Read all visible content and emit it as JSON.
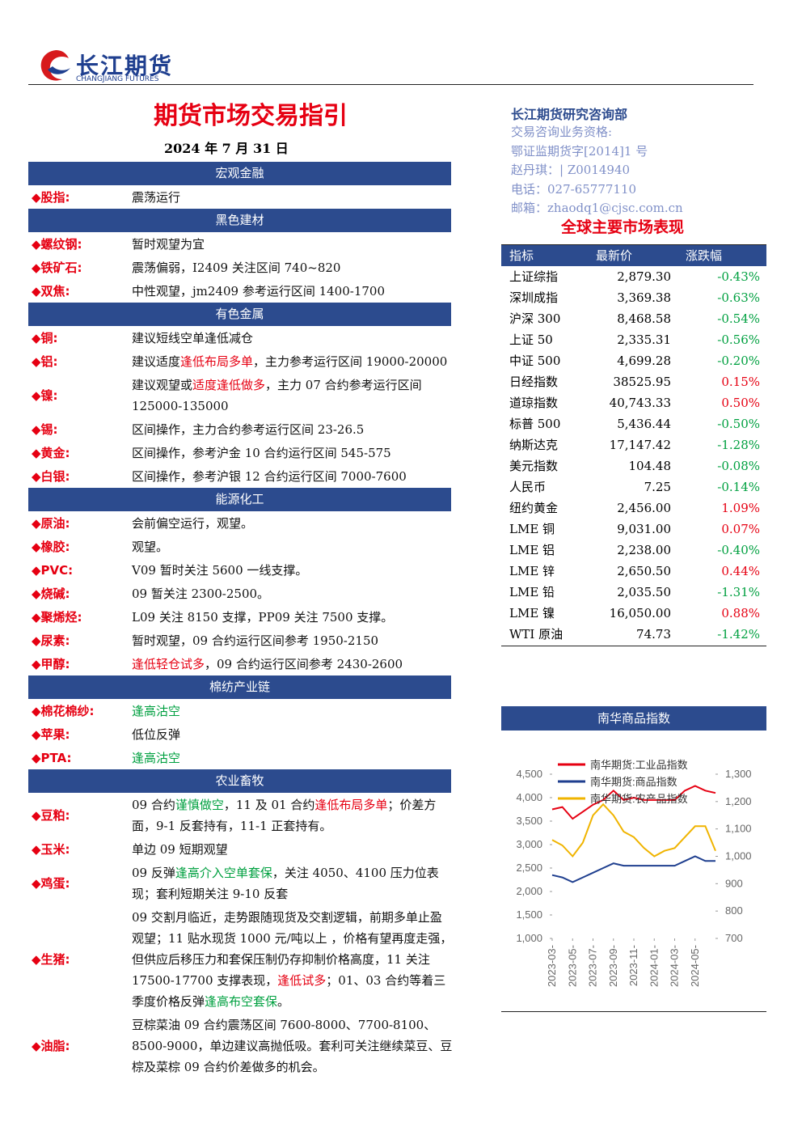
{
  "header": {
    "logo_cn": "长江期货",
    "logo_en": "CHANGJIANG FUTURES",
    "title": "期货市场交易指引",
    "date": "2024 年 7 月 31 日"
  },
  "contact": {
    "dept": "长江期货研究咨询部",
    "lines": [
      "交易咨询业务资格:",
      "鄂证监期货字[2014]1 号",
      "赵丹琪：| Z0014940",
      "电话：027-65777110",
      "邮箱：zhaodq1@cjsc.com.cn"
    ]
  },
  "sections": [
    {
      "title": "宏观金融",
      "items": [
        {
          "label": "股指:",
          "content": [
            "震荡运行"
          ]
        }
      ]
    },
    {
      "title": "黑色建材",
      "items": [
        {
          "label": "螺纹钢:",
          "content": [
            "暂时观望为宜"
          ]
        },
        {
          "label": "铁矿石:",
          "content": [
            "震荡偏弱，I2409 关注区间 740~820"
          ]
        },
        {
          "label": "双焦:",
          "content": [
            "中性观望，jm2409 参考运行区间 1400-1700"
          ]
        }
      ]
    },
    {
      "title": "有色金属",
      "items": [
        {
          "label": "铜:",
          "content": [
            "建议短线空单逢低减仓"
          ]
        },
        {
          "label": "铝:",
          "content": [
            "建议适度",
            {
              "text": "逢低布局多单",
              "color": "#e60012"
            },
            "，主力参考运行区间 19000-20000"
          ]
        },
        {
          "label": "镍:",
          "content": [
            "建议观望或",
            {
              "text": "适度逢低做多",
              "color": "#e60012"
            },
            "，主力 07 合约参考运行区间 125000-135000"
          ]
        },
        {
          "label": "锡:",
          "content": [
            "区间操作，主力合约参考运行区间 23-26.5"
          ]
        },
        {
          "label": "黄金:",
          "content": [
            "区间操作，参考沪金 10 合约运行区间 545-575"
          ]
        },
        {
          "label": "白银:",
          "content": [
            "区间操作，参考沪银 12 合约运行区间 7000-7600"
          ]
        }
      ]
    },
    {
      "title": "能源化工",
      "items": [
        {
          "label": "原油:",
          "content": [
            "会前偏空运行，观望。"
          ]
        },
        {
          "label": "橡胶:",
          "content": [
            "观望。"
          ]
        },
        {
          "label": "PVC:",
          "content": [
            "V09 暂时关注 5600 一线支撑。"
          ]
        },
        {
          "label": "烧碱:",
          "content": [
            "09 暂关注 2300-2500。"
          ]
        },
        {
          "label": "聚烯烃:",
          "content": [
            "L09 关注 8150 支撑，PP09 关注 7500 支撑。"
          ]
        },
        {
          "label": "尿素:",
          "content": [
            "暂时观望，09 合约运行区间参考 1950-2150"
          ]
        },
        {
          "label": "甲醇:",
          "content": [
            {
              "text": "逢低轻仓试多",
              "color": "#e60012"
            },
            "，09 合约运行区间参考 2430-2600"
          ]
        }
      ]
    },
    {
      "title": "棉纺产业链",
      "items": [
        {
          "label": "棉花棉纱:",
          "content": [
            {
              "text": "逢高沽空",
              "color": "#00a040"
            }
          ]
        },
        {
          "label": "苹果:",
          "content": [
            "低位反弹"
          ]
        },
        {
          "label": "PTA:",
          "content": [
            {
              "text": "逢高沽空",
              "color": "#00a040"
            }
          ]
        }
      ]
    },
    {
      "title": "农业畜牧",
      "items": [
        {
          "label": "豆粕:",
          "content": [
            "09 合约",
            {
              "text": "谨慎做空",
              "color": "#00a040"
            },
            "，11 及 01 合约",
            {
              "text": "逢低布局多单",
              "color": "#e60012"
            },
            "；价差方面，9-1 反套持有，11-1 正套持有。"
          ]
        },
        {
          "label": "玉米:",
          "content": [
            "单边 09 短期观望"
          ]
        },
        {
          "label": "鸡蛋:",
          "content": [
            "09 反弹",
            {
              "text": "逢高介入空单套保",
              "color": "#00a040"
            },
            "，关注 4050、4100 压力位表现；套利短期关注 9-10 反套"
          ]
        },
        {
          "label": "生猪:",
          "content": [
            "09 交割月临近，走势跟随现货及交割逻辑，前期多单止盈观望；11 贴水现货 1000 元/吨以上 ，价格有望再度走强，但供应后移压力和套保压制仍存抑制价格高度，11 关注 17500-17700 支撑表现，",
            {
              "text": "逢低试多",
              "color": "#e60012"
            },
            "；01、03 合约等着三季度价格反弹",
            {
              "text": "逢高布空套保",
              "color": "#00a040"
            },
            "。"
          ]
        },
        {
          "label": "油脂:",
          "content": [
            "豆棕菜油 09 合约震荡区间 7600-8000、7700-8100、8500-9000，单边建议高抛低吸。套利可关注继续菜豆、豆棕及菜棕 09 合约价差做多的机会。"
          ]
        }
      ]
    }
  ],
  "market": {
    "title": "全球主要市场表现",
    "columns": [
      "指标",
      "最新价",
      "涨跌幅"
    ],
    "rows": [
      [
        "上证综指",
        "2,879.30",
        "-0.43%"
      ],
      [
        "深圳成指",
        "3,369.38",
        "-0.63%"
      ],
      [
        "沪深 300",
        "8,468.58",
        "-0.54%"
      ],
      [
        "上证 50",
        "2,335.31",
        "-0.56%"
      ],
      [
        "中证 500",
        "4,699.28",
        "-0.20%"
      ],
      [
        "日经指数",
        "38525.95",
        "0.15%"
      ],
      [
        "道琼指数",
        "40,743.33",
        "0.50%"
      ],
      [
        "标普 500",
        "5,436.44",
        "-0.50%"
      ],
      [
        "纳斯达克",
        "17,147.42",
        "-1.28%"
      ],
      [
        "美元指数",
        "104.48",
        "-0.08%"
      ],
      [
        "人民币",
        "7.25",
        "-0.14%"
      ],
      [
        "纽约黄金",
        "2,456.00",
        "1.09%"
      ],
      [
        "LME 铜",
        "9,031.00",
        "0.07%"
      ],
      [
        "LME 铝",
        "2,238.00",
        "-0.40%"
      ],
      [
        "LME 锌",
        "2,650.50",
        "0.44%"
      ],
      [
        "LME 铅",
        "2,035.50",
        "-1.31%"
      ],
      [
        "LME 镍",
        "16,050.00",
        "0.88%"
      ],
      [
        "WTI 原油",
        "74.73",
        "-1.42%"
      ]
    ]
  },
  "chart_data": {
    "type": "line",
    "title": "南华商品指数",
    "categories": [
      "2023-03-",
      null,
      "2023-05-",
      null,
      "2023-07-",
      null,
      "2023-09-",
      null,
      "2023-11-",
      null,
      "2024-01-",
      null,
      "2024-03-",
      null,
      "2024-05-",
      null,
      null
    ],
    "series": [
      {
        "name": "南华期货:工业品指数",
        "color": "#e60012",
        "values": [
          3750,
          3800,
          3550,
          3700,
          3850,
          3950,
          4150,
          3950,
          4000,
          3950,
          3950,
          3950,
          3950,
          4150,
          4250,
          4150,
          4100
        ]
      },
      {
        "name": "南华期货:商品指数",
        "color": "#1f3f8f",
        "values": [
          2350,
          2300,
          2200,
          2300,
          2400,
          2500,
          2600,
          2550,
          2550,
          2550,
          2550,
          2550,
          2550,
          2650,
          2750,
          2650,
          2650
        ]
      },
      {
        "name": "南华期货:农产品指数",
        "color": "#f0b400",
        "axis": "y2",
        "values": [
          1060,
          1040,
          1000,
          1050,
          1150,
          1190,
          1150,
          1090,
          1070,
          1030,
          1000,
          1020,
          1030,
          1070,
          1110,
          1110,
          1020
        ]
      }
    ],
    "ylim": [
      1000,
      4500
    ],
    "yticks": [
      {
        "value": 1000,
        "label": "1,000"
      },
      {
        "value": 1500,
        "label": "1,500"
      },
      {
        "value": 2000,
        "label": "2,000"
      },
      {
        "value": 2500,
        "label": "2,500"
      },
      {
        "value": 3000,
        "label": "3,000"
      },
      {
        "value": 3500,
        "label": "3,500"
      },
      {
        "value": 4000,
        "label": "4,000"
      },
      {
        "value": 4500,
        "label": "4,500"
      }
    ],
    "y2lim": [
      700,
      1300
    ],
    "y2ticks": [
      700,
      800,
      900,
      {
        "value": 1000,
        "label": "1,000"
      },
      {
        "value": 1100,
        "label": "1,100"
      },
      {
        "value": 1200,
        "label": "1,200"
      },
      {
        "value": 1300,
        "label": "1,300"
      }
    ]
  }
}
